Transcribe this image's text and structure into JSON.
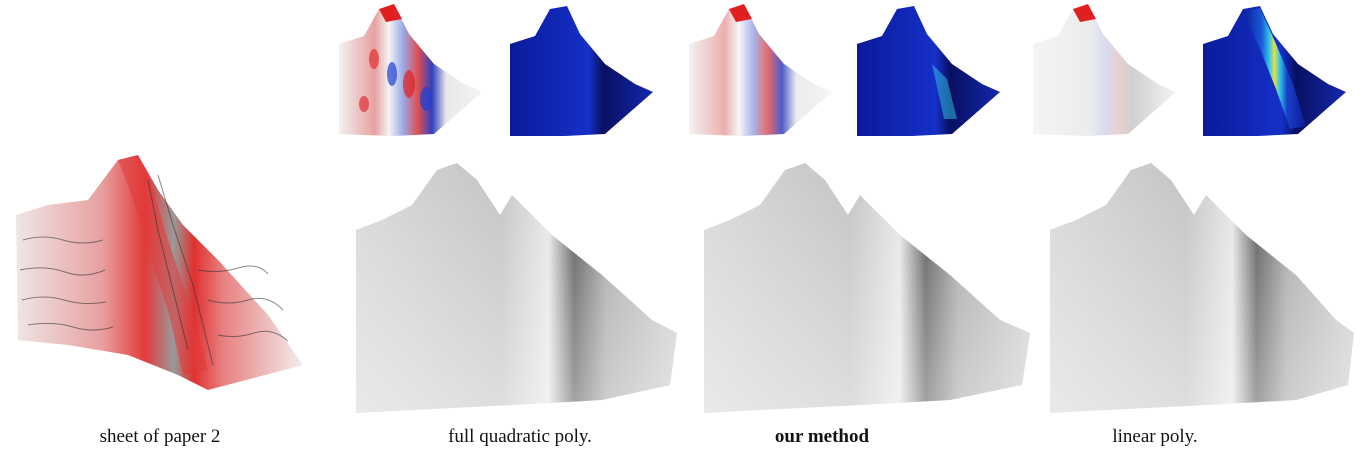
{
  "captions": {
    "input": "sheet of paper 2",
    "full_quadratic": "full quadratic poly.",
    "ours": "our method",
    "linear": "linear poly."
  },
  "colors": {
    "surface_gray": "#b8b8b8",
    "input_red": "#e23a3a",
    "diff_red": "#e02020",
    "diff_blue": "#2040d0",
    "error_blue": "#0a1fb0",
    "error_cyan": "#33c8e8",
    "error_yellow": "#e8e040"
  }
}
